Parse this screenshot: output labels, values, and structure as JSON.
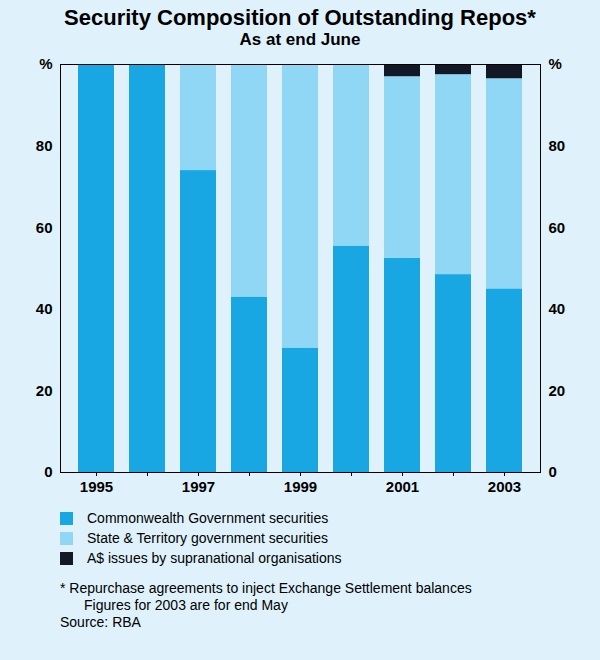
{
  "chart_data": {
    "type": "bar",
    "title": "Security Composition of Outstanding Repos*",
    "subtitle": "As at end June",
    "stacked": true,
    "grid": false,
    "categories": [
      "1995",
      null,
      "1997",
      null,
      "1999",
      null,
      "2001",
      null,
      "2003"
    ],
    "series": [
      {
        "name": "Commonwealth Government securities",
        "color": "#19a7e4",
        "values": [
          100,
          100,
          74,
          43,
          30.5,
          55.5,
          52.5,
          48.5,
          45
        ]
      },
      {
        "name": "State & Territory government securities",
        "color": "#8fd7f4",
        "values": [
          0,
          0,
          26,
          57,
          69.5,
          44.5,
          44.5,
          49,
          51.5
        ]
      },
      {
        "name": "A$ issues by supranational organisations",
        "color": "#121826",
        "values": [
          0,
          0,
          0,
          0,
          0,
          0,
          3,
          2.5,
          3.5
        ]
      }
    ],
    "ylim": [
      0,
      100
    ],
    "yticks": [
      0,
      20,
      40,
      60,
      80,
      {
        "value": 100,
        "label": "%"
      }
    ],
    "notes": [
      "* Repurchase agreements to inject Exchange Settlement balances",
      "Figures for 2003 are for end May",
      "Source: RBA"
    ]
  }
}
